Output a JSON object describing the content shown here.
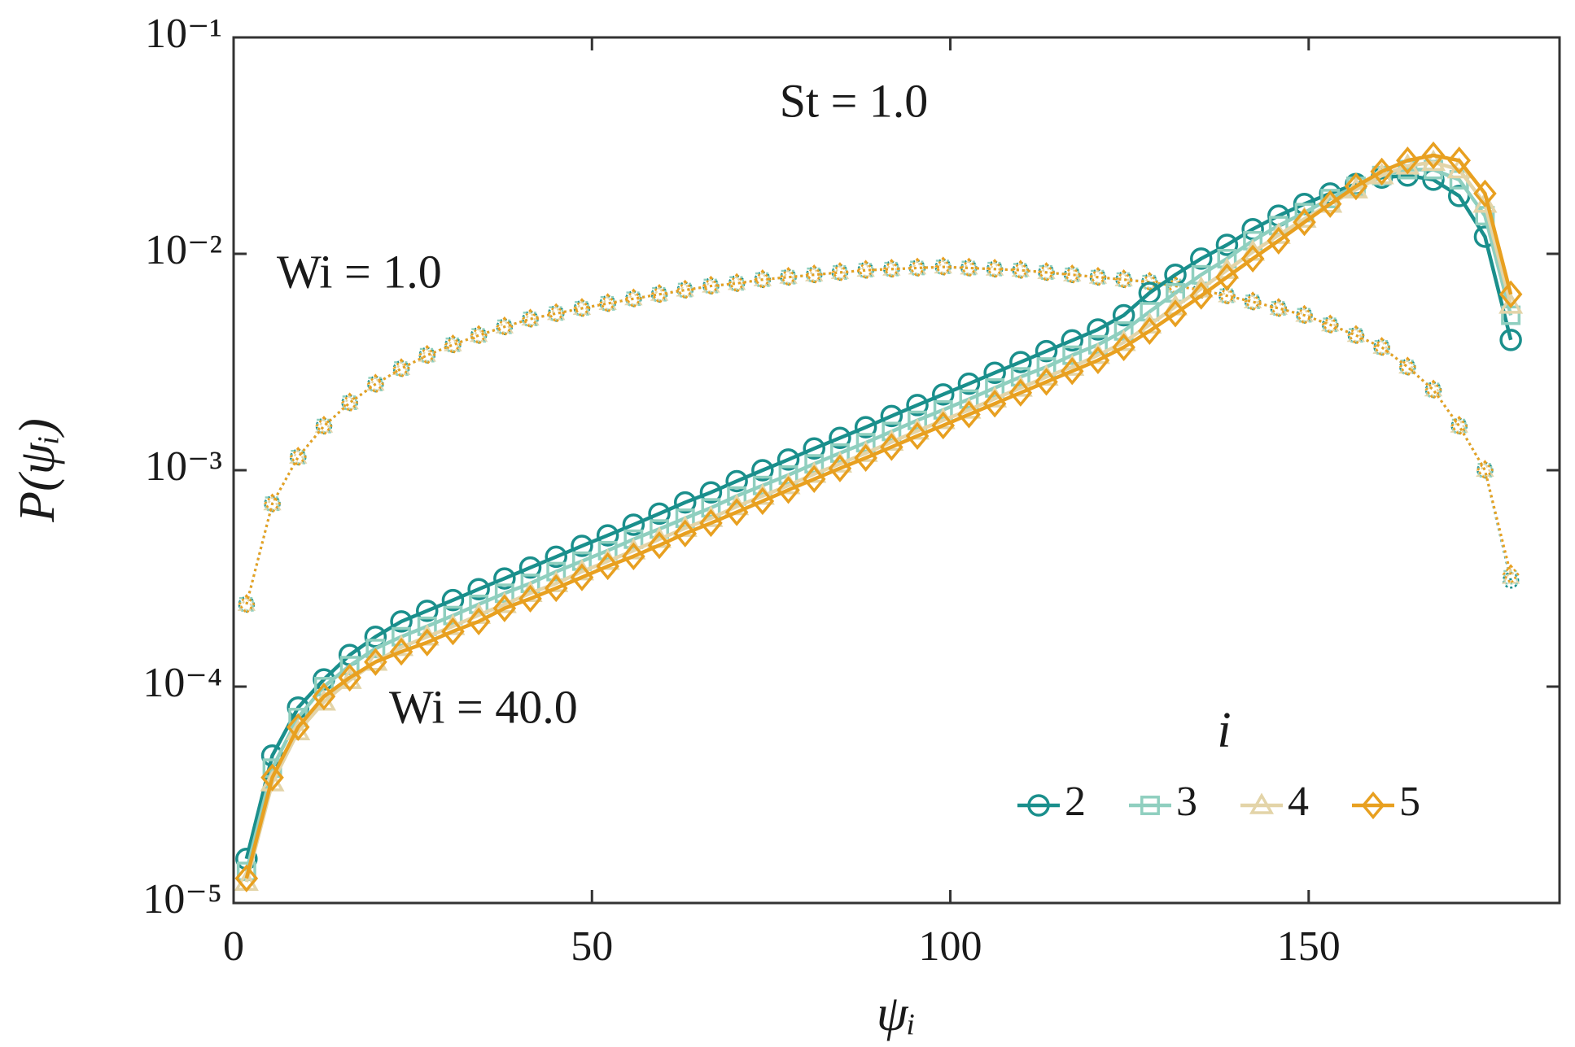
{
  "chart_data": {
    "type": "line",
    "ylog": true,
    "xlabel": "ψᵢ",
    "ylabel": "P(ψᵢ)",
    "annotations": [
      "St = 1.0",
      "Wi = 1.0",
      "Wi = 40.0"
    ],
    "legend_title": "i",
    "legend": "lower right",
    "xlim": [
      0,
      185
    ],
    "xticks": [
      0,
      50,
      100,
      150
    ],
    "ylim": [
      1e-05,
      0.1
    ],
    "yticks": [
      {
        "value": 1e-05,
        "label": "10⁻⁵"
      },
      {
        "value": 0.0001,
        "label": "10⁻⁴"
      },
      {
        "value": 0.001,
        "label": "10⁻³"
      },
      {
        "value": 0.01,
        "label": "10⁻²"
      },
      {
        "value": 0.1,
        "label": "10⁻¹"
      }
    ],
    "x": [
      1.8,
      5.4,
      9,
      12.6,
      16.2,
      19.8,
      23.4,
      27,
      30.6,
      34.2,
      37.8,
      41.4,
      45,
      48.6,
      52.2,
      55.8,
      59.4,
      63,
      66.6,
      70.2,
      73.8,
      77.4,
      81,
      84.6,
      88.2,
      91.8,
      95.4,
      99,
      102.6,
      106.2,
      109.8,
      113.4,
      117,
      120.6,
      124.2,
      127.8,
      131.4,
      135,
      138.6,
      142.2,
      145.8,
      149.4,
      153,
      156.6,
      160.2,
      163.8,
      167.4,
      171,
      174.6,
      178.2
    ],
    "series": [
      {
        "color": "#1a8f8c",
        "marker": "o",
        "linestyle": "dotted",
        "values": [
          0.00024,
          0.0007,
          0.00115,
          0.0016,
          0.00205,
          0.0025,
          0.00295,
          0.0034,
          0.0038,
          0.0042,
          0.0046,
          0.005,
          0.0053,
          0.0056,
          0.0059,
          0.0062,
          0.0065,
          0.0068,
          0.0071,
          0.0073,
          0.0076,
          0.0078,
          0.008,
          0.0082,
          0.0084,
          0.0085,
          0.0086,
          0.0087,
          0.0086,
          0.0085,
          0.0084,
          0.0082,
          0.008,
          0.0078,
          0.0076,
          0.0074,
          0.0071,
          0.0068,
          0.0064,
          0.006,
          0.0056,
          0.0052,
          0.0047,
          0.0042,
          0.0037,
          0.003,
          0.00235,
          0.0016,
          0.001,
          0.00031
        ]
      },
      {
        "color": "#8fcfbf",
        "marker": "s",
        "linestyle": "dotted",
        "values": [
          0.00024,
          0.0007,
          0.00115,
          0.0016,
          0.00205,
          0.0025,
          0.00295,
          0.0034,
          0.0038,
          0.0042,
          0.0046,
          0.005,
          0.0053,
          0.0056,
          0.0059,
          0.0062,
          0.0065,
          0.0068,
          0.0071,
          0.0073,
          0.0076,
          0.0078,
          0.008,
          0.0082,
          0.0084,
          0.0085,
          0.0086,
          0.0087,
          0.0086,
          0.0085,
          0.0084,
          0.0082,
          0.008,
          0.0078,
          0.0076,
          0.0074,
          0.0071,
          0.0068,
          0.0064,
          0.006,
          0.0056,
          0.0052,
          0.0047,
          0.0042,
          0.0037,
          0.003,
          0.00235,
          0.0016,
          0.001,
          0.00032
        ]
      },
      {
        "color": "#e3d4a8",
        "marker": "^",
        "linestyle": "dotted",
        "values": [
          0.00024,
          0.0007,
          0.00115,
          0.0016,
          0.00205,
          0.0025,
          0.00295,
          0.0034,
          0.0038,
          0.0042,
          0.0046,
          0.005,
          0.0053,
          0.0056,
          0.0059,
          0.0062,
          0.0065,
          0.0068,
          0.0071,
          0.0073,
          0.0076,
          0.0078,
          0.008,
          0.0082,
          0.0084,
          0.0085,
          0.0086,
          0.0087,
          0.0086,
          0.0085,
          0.0084,
          0.0082,
          0.008,
          0.0078,
          0.0076,
          0.0074,
          0.0071,
          0.0068,
          0.0064,
          0.006,
          0.0056,
          0.0052,
          0.0047,
          0.0042,
          0.0037,
          0.003,
          0.00235,
          0.0016,
          0.001,
          0.00032
        ]
      },
      {
        "color": "#e8a020",
        "marker": "D",
        "linestyle": "dotted",
        "values": [
          0.00024,
          0.0007,
          0.00115,
          0.0016,
          0.00205,
          0.0025,
          0.00295,
          0.0034,
          0.0038,
          0.0042,
          0.0046,
          0.005,
          0.0053,
          0.0056,
          0.0059,
          0.0062,
          0.0065,
          0.0068,
          0.0071,
          0.0073,
          0.0076,
          0.0078,
          0.008,
          0.0082,
          0.0084,
          0.0085,
          0.0086,
          0.0087,
          0.0086,
          0.0085,
          0.0084,
          0.0082,
          0.008,
          0.0078,
          0.0076,
          0.0074,
          0.0071,
          0.0068,
          0.0064,
          0.006,
          0.0056,
          0.0052,
          0.0047,
          0.0042,
          0.0037,
          0.003,
          0.00235,
          0.0016,
          0.001,
          0.00033
        ]
      },
      {
        "name": "2",
        "color": "#1a8f8c",
        "marker": "o",
        "linestyle": "solid",
        "values": [
          1.6e-05,
          4.8e-05,
          8e-05,
          0.000108,
          0.00014,
          0.00017,
          0.0002,
          0.000224,
          0.000251,
          0.000282,
          0.000316,
          0.000355,
          0.000398,
          0.000447,
          0.0005,
          0.00056,
          0.00063,
          0.00071,
          0.00079,
          0.00089,
          0.001,
          0.00112,
          0.00126,
          0.00141,
          0.00158,
          0.00178,
          0.002,
          0.00224,
          0.00251,
          0.00282,
          0.00316,
          0.00355,
          0.00398,
          0.00447,
          0.0052,
          0.0066,
          0.008,
          0.0095,
          0.011,
          0.013,
          0.015,
          0.017,
          0.019,
          0.021,
          0.0225,
          0.023,
          0.022,
          0.0185,
          0.012,
          0.004
        ]
      },
      {
        "name": "3",
        "color": "#8fcfbf",
        "marker": "s",
        "linestyle": "solid",
        "values": [
          1.4e-05,
          4.2e-05,
          7.2e-05,
          0.0001,
          0.000125,
          0.00015,
          0.00017,
          0.00019,
          0.000213,
          0.00024,
          0.00027,
          0.0003,
          0.00034,
          0.00038,
          0.000425,
          0.00048,
          0.000535,
          0.0006,
          0.00067,
          0.00076,
          0.00085,
          0.00095,
          0.00107,
          0.0012,
          0.00134,
          0.00151,
          0.0017,
          0.0019,
          0.00213,
          0.0024,
          0.0027,
          0.003,
          0.0034,
          0.0038,
          0.0044,
          0.0054,
          0.0066,
          0.008,
          0.0095,
          0.0115,
          0.0135,
          0.0155,
          0.018,
          0.0205,
          0.023,
          0.0245,
          0.0245,
          0.022,
          0.015,
          0.0052
        ]
      },
      {
        "name": "4",
        "color": "#e3d4a8",
        "marker": "^",
        "linestyle": "solid",
        "values": [
          1.25e-05,
          3.6e-05,
          6.2e-05,
          8.5e-05,
          0.000107,
          0.00013,
          0.000152,
          0.00017,
          0.00019,
          0.000214,
          0.00024,
          0.00027,
          0.0003,
          0.00034,
          0.00038,
          0.000425,
          0.00048,
          0.00054,
          0.0006,
          0.00068,
          0.00076,
          0.00085,
          0.00096,
          0.00107,
          0.0012,
          0.00135,
          0.00152,
          0.0017,
          0.0019,
          0.00214,
          0.0024,
          0.0027,
          0.003,
          0.0034,
          0.0039,
          0.0047,
          0.0057,
          0.0069,
          0.0084,
          0.0102,
          0.0122,
          0.0145,
          0.017,
          0.0198,
          0.023,
          0.0255,
          0.0265,
          0.0245,
          0.017,
          0.0058
        ]
      },
      {
        "name": "5",
        "color": "#e8a020",
        "marker": "D",
        "linestyle": "solid",
        "values": [
          1.3e-05,
          3.8e-05,
          6.5e-05,
          9e-05,
          0.00011,
          0.00013,
          0.000145,
          0.00016,
          0.00018,
          0.0002,
          0.00023,
          0.000255,
          0.000285,
          0.00032,
          0.00036,
          0.0004,
          0.00045,
          0.00051,
          0.00057,
          0.00064,
          0.00072,
          0.00081,
          0.00091,
          0.00102,
          0.00114,
          0.00128,
          0.00144,
          0.00161,
          0.00181,
          0.00203,
          0.00228,
          0.00256,
          0.00287,
          0.00322,
          0.0037,
          0.0044,
          0.0053,
          0.0064,
          0.0078,
          0.0095,
          0.0115,
          0.014,
          0.017,
          0.0205,
          0.024,
          0.027,
          0.0285,
          0.027,
          0.019,
          0.0065
        ]
      }
    ]
  }
}
